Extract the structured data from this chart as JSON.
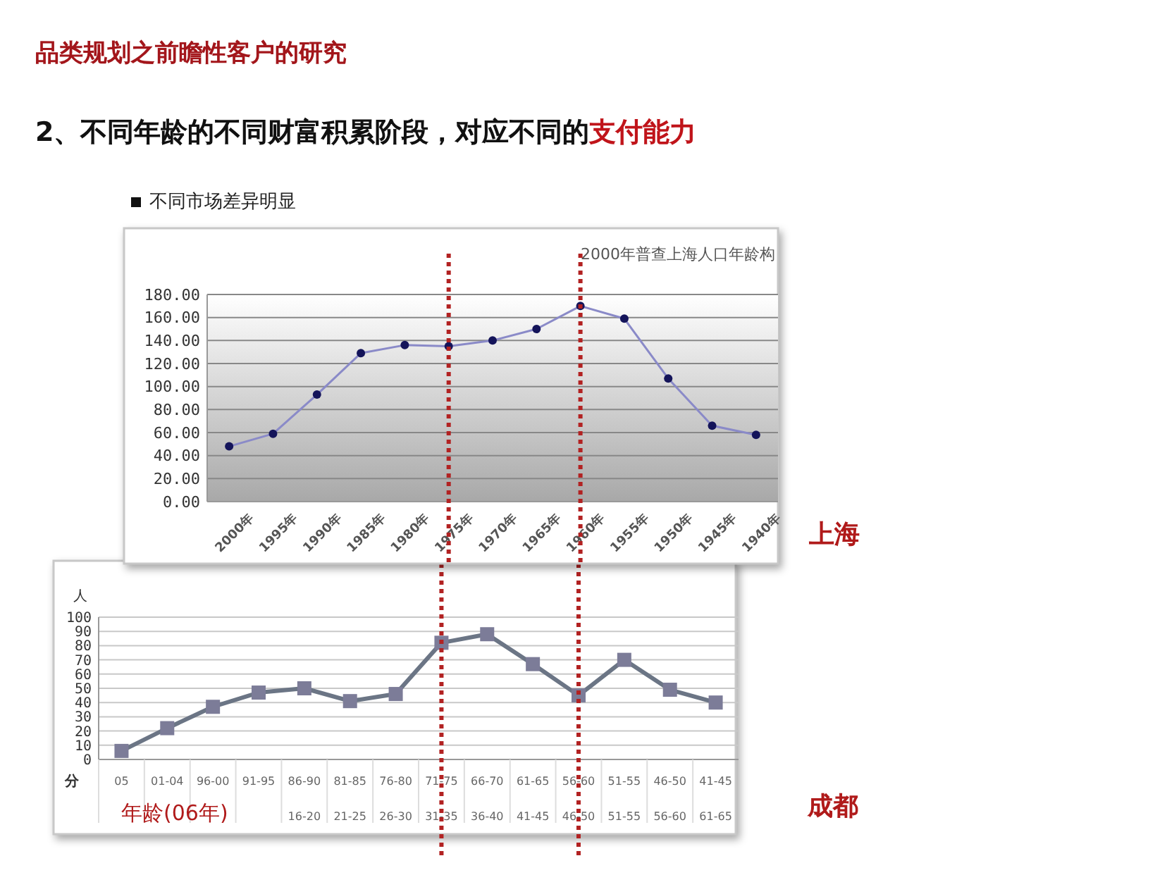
{
  "chart_data": [
    {
      "type": "line",
      "title": "2000年普查上海人口年龄构",
      "categories": [
        "2000年",
        "1995年",
        "1990年",
        "1985年",
        "1980年",
        "1975年",
        "1970年",
        "1965年",
        "1960年",
        "1955年",
        "1950年",
        "1945年",
        "1940年"
      ],
      "series": [
        {
          "color": "#8a8ac8",
          "values": [
            48,
            59,
            93,
            129,
            136,
            135,
            140,
            150,
            170,
            159,
            107,
            66,
            58
          ]
        }
      ],
      "ylim": [
        0,
        180
      ],
      "yticks": [
        {
          "value": 0,
          "label": "0.00"
        },
        {
          "value": 20,
          "label": "20.00"
        },
        {
          "value": 40,
          "label": "40.00"
        },
        {
          "value": 60,
          "label": "60.00"
        },
        {
          "value": 80,
          "label": "80.00"
        },
        {
          "value": 100,
          "label": "100.00"
        },
        {
          "value": 120,
          "label": "120.00"
        },
        {
          "value": 140,
          "label": "140.00"
        },
        {
          "value": 160,
          "label": "160.00"
        },
        {
          "value": 180,
          "label": "180.00"
        }
      ],
      "grid": "y",
      "marker": "circle",
      "line_style": "solid",
      "ref_lines": [
        {
          "axis": "x",
          "value": "1975年",
          "color": "#b22222",
          "line_style": "dotted"
        },
        {
          "axis": "x",
          "value": "1960年",
          "color": "#b22222",
          "line_style": "dotted"
        }
      ],
      "annotations": [
        "品类规划之前瞻性客户的研究",
        "2、不同年龄的不同财富积累阶段，对应不同的",
        "支付能力",
        "不同市场差异明显",
        "上海"
      ]
    },
    {
      "type": "line",
      "categories": [
        "05",
        "01-04",
        "96-00",
        "91-95",
        "86-90\n16-20",
        "81-85\n21-25",
        "76-80\n26-30",
        "71-75\n31-35",
        "66-70\n36-40",
        "61-65\n41-45",
        "56-60\n46-50",
        "51-55\n51-55",
        "46-50\n56-60",
        "41-45\n61-65"
      ],
      "series": [
        {
          "color": "#6b7585",
          "values": [
            6,
            22,
            37,
            47,
            50,
            41,
            46,
            82,
            88,
            67,
            45,
            70,
            49,
            40
          ]
        }
      ],
      "ylabel": "人",
      "ylim": [
        0,
        100
      ],
      "yticks": [
        0,
        10,
        20,
        30,
        40,
        50,
        60,
        70,
        80,
        90,
        100
      ],
      "grid": "y",
      "marker": "square",
      "line_style": "solid",
      "ref_lines": [
        {
          "axis": "x",
          "value": "71-75\n31-35",
          "color": "#b22222",
          "line_style": "dotted"
        },
        {
          "axis": "x",
          "value": "56-60\n46-50",
          "color": "#b22222",
          "line_style": "dotted"
        }
      ],
      "annotations": [
        "分",
        "年龄(06年)",
        "成都"
      ]
    }
  ]
}
